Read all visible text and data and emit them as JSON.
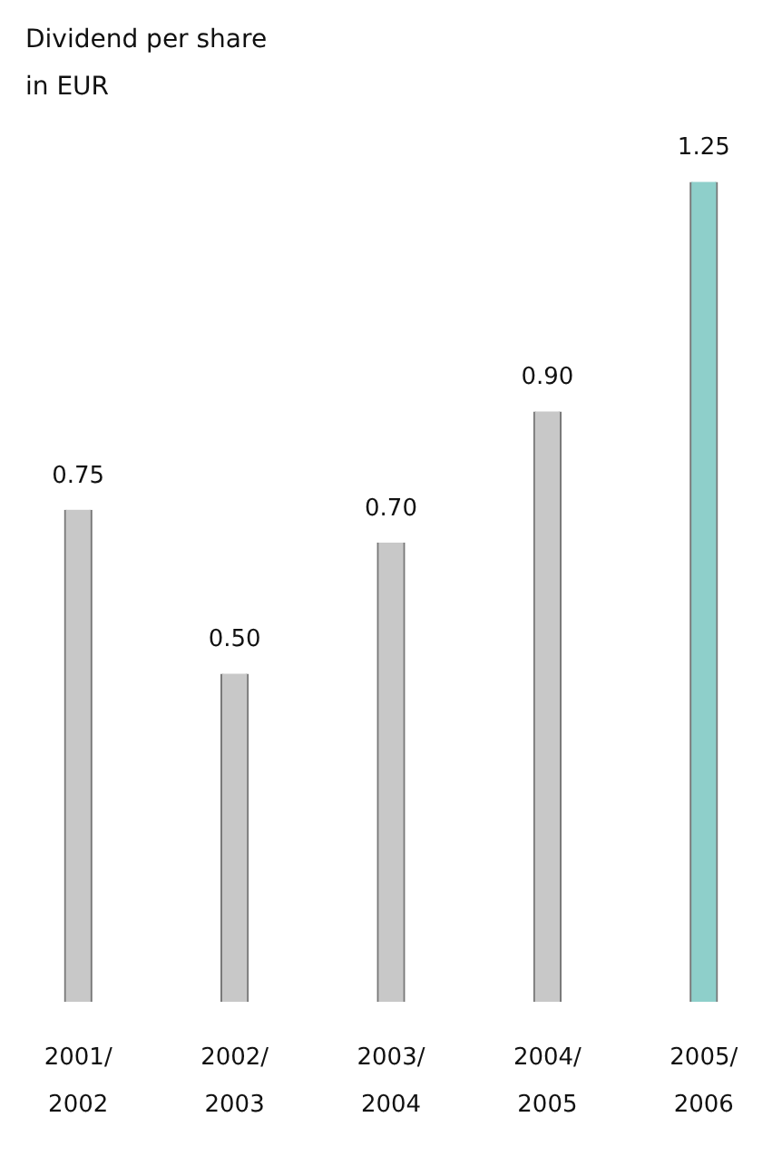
{
  "chart_data": {
    "type": "bar",
    "title": "Dividend per share",
    "subtitle": "in EUR",
    "categories": [
      "2001/2002",
      "2002/2003",
      "2003/2004",
      "2004/2005",
      "2005/2006"
    ],
    "values": [
      0.75,
      0.5,
      0.7,
      0.9,
      1.25
    ],
    "colors": [
      "#c8c8c8",
      "#c8c8c8",
      "#c8c8c8",
      "#c8c8c8",
      "#8ecfca"
    ],
    "value_labels": [
      "0.75",
      "0.50",
      "0.70",
      "0.90",
      "1.25"
    ],
    "grid": false,
    "legend": false
  }
}
